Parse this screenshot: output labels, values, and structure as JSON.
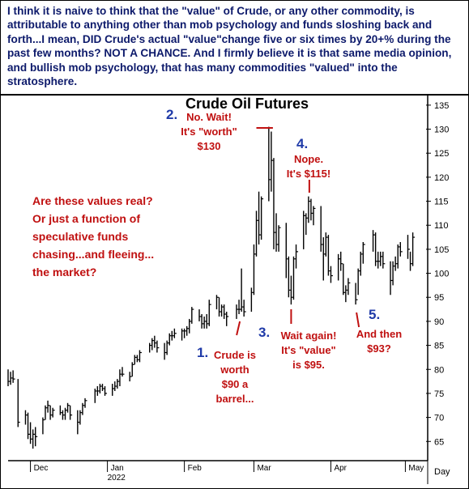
{
  "commentary": "I think it is naive to think that the \"value\" of Crude, or any other commodity, is attributable to anything other than mob psychology and funds sloshing back and forth...I mean, DID Crude's actual \"value\"change  five or six times by 20+% during the past few months? NOT A CHANCE. And I firmly believe it is that same media opinion, and bullish mob psychology, that has many commodities \"valued\" into the stratosphere.",
  "question": [
    "Are these values real?",
    "Or just a function of",
    "speculative funds",
    "chasing...and fleeing...",
    "the market?"
  ],
  "annotations": [
    {
      "num": "1.",
      "lines": [
        "Crude is",
        "worth",
        "$90 a",
        "barrel..."
      ]
    },
    {
      "num": "2.",
      "lines": [
        "No. Wait!",
        "It's \"worth\"",
        "$130"
      ]
    },
    {
      "num": "3.",
      "lines": [
        "Wait again!",
        "It's \"value\"",
        "is $95."
      ]
    },
    {
      "num": "4.",
      "lines": [
        "Nope.",
        "It's $115!"
      ]
    },
    {
      "num": "5.",
      "lines": [
        "And then",
        "$93?"
      ]
    }
  ],
  "colors": {
    "accent_red": "#c01010",
    "number_blue": "#1f3aa8",
    "banner_text": "#0d1a6b",
    "bars": "#000000"
  },
  "chart_data": {
    "type": "ohlc",
    "title": "Crude Oil Futures",
    "xlabel": "Day",
    "ylabel": "",
    "ylim": [
      61,
      137
    ],
    "yticks": [
      65,
      70,
      75,
      80,
      85,
      90,
      95,
      100,
      105,
      110,
      115,
      120,
      125,
      130,
      135
    ],
    "x_tick_labels": [
      "Dec",
      "Jan",
      "Feb",
      "Mar",
      "Apr",
      "May"
    ],
    "year_label": "2022",
    "x_range": [
      "2021-11-22",
      "2022-05-10"
    ],
    "series": [
      {
        "columns": [
          "date",
          "high",
          "low",
          "close"
        ],
        "values": [
          [
            "2021-11-22",
            80.0,
            76.5,
            77.5
          ],
          [
            "2021-11-23",
            79.5,
            76.8,
            78.2
          ],
          [
            "2021-11-24",
            79.8,
            77.2,
            78.0
          ],
          [
            "2021-11-26",
            78.0,
            68.0,
            69.0
          ],
          [
            "2021-11-29",
            71.5,
            68.5,
            70.5
          ],
          [
            "2021-11-30",
            71.0,
            65.5,
            66.5
          ],
          [
            "2021-12-01",
            69.0,
            64.5,
            65.5
          ],
          [
            "2021-12-02",
            67.5,
            63.5,
            66.5
          ],
          [
            "2021-12-03",
            68.0,
            64.0,
            66.0
          ],
          [
            "2021-12-06",
            70.0,
            66.5,
            69.5
          ],
          [
            "2021-12-07",
            72.5,
            69.5,
            72.0
          ],
          [
            "2021-12-08",
            73.5,
            71.0,
            72.5
          ],
          [
            "2021-12-09",
            72.5,
            69.5,
            70.5
          ],
          [
            "2021-12-10",
            72.0,
            70.0,
            71.5
          ],
          [
            "2021-12-13",
            72.5,
            70.5,
            71.0
          ],
          [
            "2021-12-14",
            71.5,
            69.5,
            70.5
          ],
          [
            "2021-12-15",
            72.0,
            69.5,
            71.5
          ],
          [
            "2021-12-16",
            73.0,
            71.0,
            72.5
          ],
          [
            "2021-12-17",
            72.5,
            69.5,
            70.5
          ],
          [
            "2021-12-20",
            71.5,
            66.5,
            69.0
          ],
          [
            "2021-12-21",
            71.5,
            68.5,
            71.0
          ],
          [
            "2021-12-22",
            73.0,
            70.5,
            72.5
          ],
          [
            "2021-12-23",
            74.0,
            72.0,
            73.5
          ],
          [
            "2021-12-27",
            76.0,
            73.0,
            75.5
          ],
          [
            "2021-12-28",
            76.5,
            74.5,
            75.5
          ],
          [
            "2021-12-29",
            77.0,
            75.0,
            76.5
          ],
          [
            "2021-12-30",
            77.0,
            75.5,
            76.0
          ],
          [
            "2021-12-31",
            76.5,
            74.5,
            75.0
          ],
          [
            "2022-01-03",
            77.0,
            74.5,
            76.0
          ],
          [
            "2022-01-04",
            77.5,
            75.5,
            76.5
          ],
          [
            "2022-01-05",
            78.0,
            76.0,
            77.5
          ],
          [
            "2022-01-06",
            80.0,
            76.5,
            79.0
          ],
          [
            "2022-01-07",
            80.5,
            78.5,
            79.0
          ],
          [
            "2022-01-10",
            79.5,
            77.5,
            78.5
          ],
          [
            "2022-01-11",
            81.5,
            78.5,
            81.0
          ],
          [
            "2022-01-12",
            83.0,
            81.0,
            82.5
          ],
          [
            "2022-01-13",
            83.0,
            81.5,
            82.0
          ],
          [
            "2022-01-14",
            84.0,
            81.5,
            83.5
          ],
          [
            "2022-01-18",
            85.5,
            83.5,
            85.0
          ],
          [
            "2022-01-19",
            86.5,
            84.0,
            86.0
          ],
          [
            "2022-01-20",
            87.0,
            84.5,
            85.5
          ],
          [
            "2022-01-21",
            86.0,
            83.5,
            84.5
          ],
          [
            "2022-01-24",
            85.5,
            82.0,
            83.5
          ],
          [
            "2022-01-25",
            86.0,
            83.0,
            85.5
          ],
          [
            "2022-01-26",
            87.5,
            85.0,
            87.0
          ],
          [
            "2022-01-27",
            88.0,
            86.0,
            87.0
          ],
          [
            "2022-01-28",
            88.5,
            86.5,
            87.5
          ],
          [
            "2022-01-31",
            88.5,
            86.0,
            88.0
          ],
          [
            "2022-02-01",
            88.5,
            86.5,
            88.0
          ],
          [
            "2022-02-02",
            89.0,
            87.0,
            88.5
          ],
          [
            "2022-02-03",
            90.5,
            87.5,
            90.0
          ],
          [
            "2022-02-04",
            93.0,
            89.5,
            92.5
          ],
          [
            "2022-02-07",
            92.5,
            90.0,
            91.0
          ],
          [
            "2022-02-08",
            91.5,
            88.5,
            89.5
          ],
          [
            "2022-02-09",
            91.0,
            88.5,
            90.0
          ],
          [
            "2022-02-10",
            91.5,
            88.5,
            89.5
          ],
          [
            "2022-02-11",
            94.5,
            89.0,
            93.5
          ],
          [
            "2022-02-14",
            95.5,
            92.5,
            95.0
          ],
          [
            "2022-02-15",
            95.0,
            91.0,
            92.0
          ],
          [
            "2022-02-16",
            93.5,
            91.0,
            93.0
          ],
          [
            "2022-02-17",
            93.5,
            90.5,
            91.5
          ],
          [
            "2022-02-18",
            92.0,
            89.0,
            91.0
          ],
          [
            "2022-02-22",
            93.5,
            90.5,
            92.5
          ],
          [
            "2022-02-23",
            94.5,
            91.5,
            92.5
          ],
          [
            "2022-02-24",
            101.0,
            92.0,
            93.0
          ],
          [
            "2022-02-25",
            94.5,
            91.0,
            92.0
          ],
          [
            "2022-02-28",
            97.0,
            92.0,
            96.0
          ],
          [
            "2022-03-01",
            106.0,
            95.5,
            104.0
          ],
          [
            "2022-03-02",
            113.0,
            103.5,
            111.0
          ],
          [
            "2022-03-03",
            117.0,
            106.0,
            108.0
          ],
          [
            "2022-03-04",
            116.0,
            107.0,
            115.5
          ],
          [
            "2022-03-07",
            130.5,
            115.0,
            119.5
          ],
          [
            "2022-03-08",
            129.5,
            117.0,
            123.5
          ],
          [
            "2022-03-09",
            124.0,
            105.0,
            108.5
          ],
          [
            "2022-03-10",
            112.5,
            104.5,
            106.0
          ],
          [
            "2022-03-11",
            110.0,
            104.5,
            109.5
          ],
          [
            "2022-03-14",
            110.5,
            99.0,
            103.0
          ],
          [
            "2022-03-15",
            103.5,
            95.0,
            96.5
          ],
          [
            "2022-03-16",
            99.5,
            93.5,
            95.0
          ],
          [
            "2022-03-17",
            103.5,
            94.5,
            103.0
          ],
          [
            "2022-03-18",
            106.0,
            101.0,
            104.5
          ],
          [
            "2022-03-21",
            113.0,
            105.0,
            112.0
          ],
          [
            "2022-03-22",
            112.5,
            108.0,
            111.5
          ],
          [
            "2022-03-23",
            116.0,
            110.5,
            115.0
          ],
          [
            "2022-03-24",
            115.5,
            111.0,
            112.5
          ],
          [
            "2022-03-25",
            114.0,
            110.0,
            113.5
          ],
          [
            "2022-03-28",
            114.0,
            104.5,
            106.0
          ],
          [
            "2022-03-29",
            107.5,
            98.5,
            104.0
          ],
          [
            "2022-03-30",
            108.5,
            103.5,
            107.5
          ],
          [
            "2022-03-31",
            108.0,
            99.5,
            100.5
          ],
          [
            "2022-04-01",
            101.5,
            98.0,
            99.5
          ],
          [
            "2022-04-04",
            104.0,
            98.5,
            103.0
          ],
          [
            "2022-04-05",
            104.5,
            100.5,
            102.0
          ],
          [
            "2022-04-06",
            102.0,
            95.5,
            96.0
          ],
          [
            "2022-04-07",
            97.5,
            94.0,
            96.5
          ],
          [
            "2022-04-08",
            99.0,
            95.5,
            98.0
          ],
          [
            "2022-04-11",
            98.0,
            93.5,
            94.5
          ],
          [
            "2022-04-12",
            101.0,
            95.5,
            100.5
          ],
          [
            "2022-04-13",
            104.5,
            99.5,
            104.0
          ],
          [
            "2022-04-14",
            106.5,
            102.0,
            106.0
          ],
          [
            "2022-04-18",
            109.0,
            104.5,
            108.0
          ],
          [
            "2022-04-19",
            108.5,
            101.5,
            102.5
          ],
          [
            "2022-04-20",
            104.5,
            101.0,
            102.5
          ],
          [
            "2022-04-21",
            104.5,
            101.5,
            103.5
          ],
          [
            "2022-04-22",
            104.5,
            101.0,
            102.0
          ],
          [
            "2022-04-25",
            102.5,
            95.5,
            98.5
          ],
          [
            "2022-04-26",
            102.5,
            97.5,
            101.5
          ],
          [
            "2022-04-27",
            103.5,
            100.5,
            102.0
          ],
          [
            "2022-04-28",
            106.0,
            101.0,
            105.5
          ],
          [
            "2022-04-29",
            106.5,
            103.5,
            104.5
          ],
          [
            "2022-05-02",
            108.0,
            103.0,
            105.0
          ],
          [
            "2022-05-03",
            104.5,
            100.5,
            102.0
          ],
          [
            "2022-05-04",
            108.5,
            101.5,
            107.5
          ]
        ]
      }
    ],
    "markers": [
      {
        "num": "1.",
        "date": "2022-02-24",
        "price": 90
      },
      {
        "num": "2.",
        "date": "2022-03-07",
        "price": 130
      },
      {
        "num": "3.",
        "date": "2022-03-16",
        "price": 95
      },
      {
        "num": "4.",
        "date": "2022-03-23",
        "price": 115
      },
      {
        "num": "5.",
        "date": "2022-04-11",
        "price": 93
      }
    ]
  }
}
